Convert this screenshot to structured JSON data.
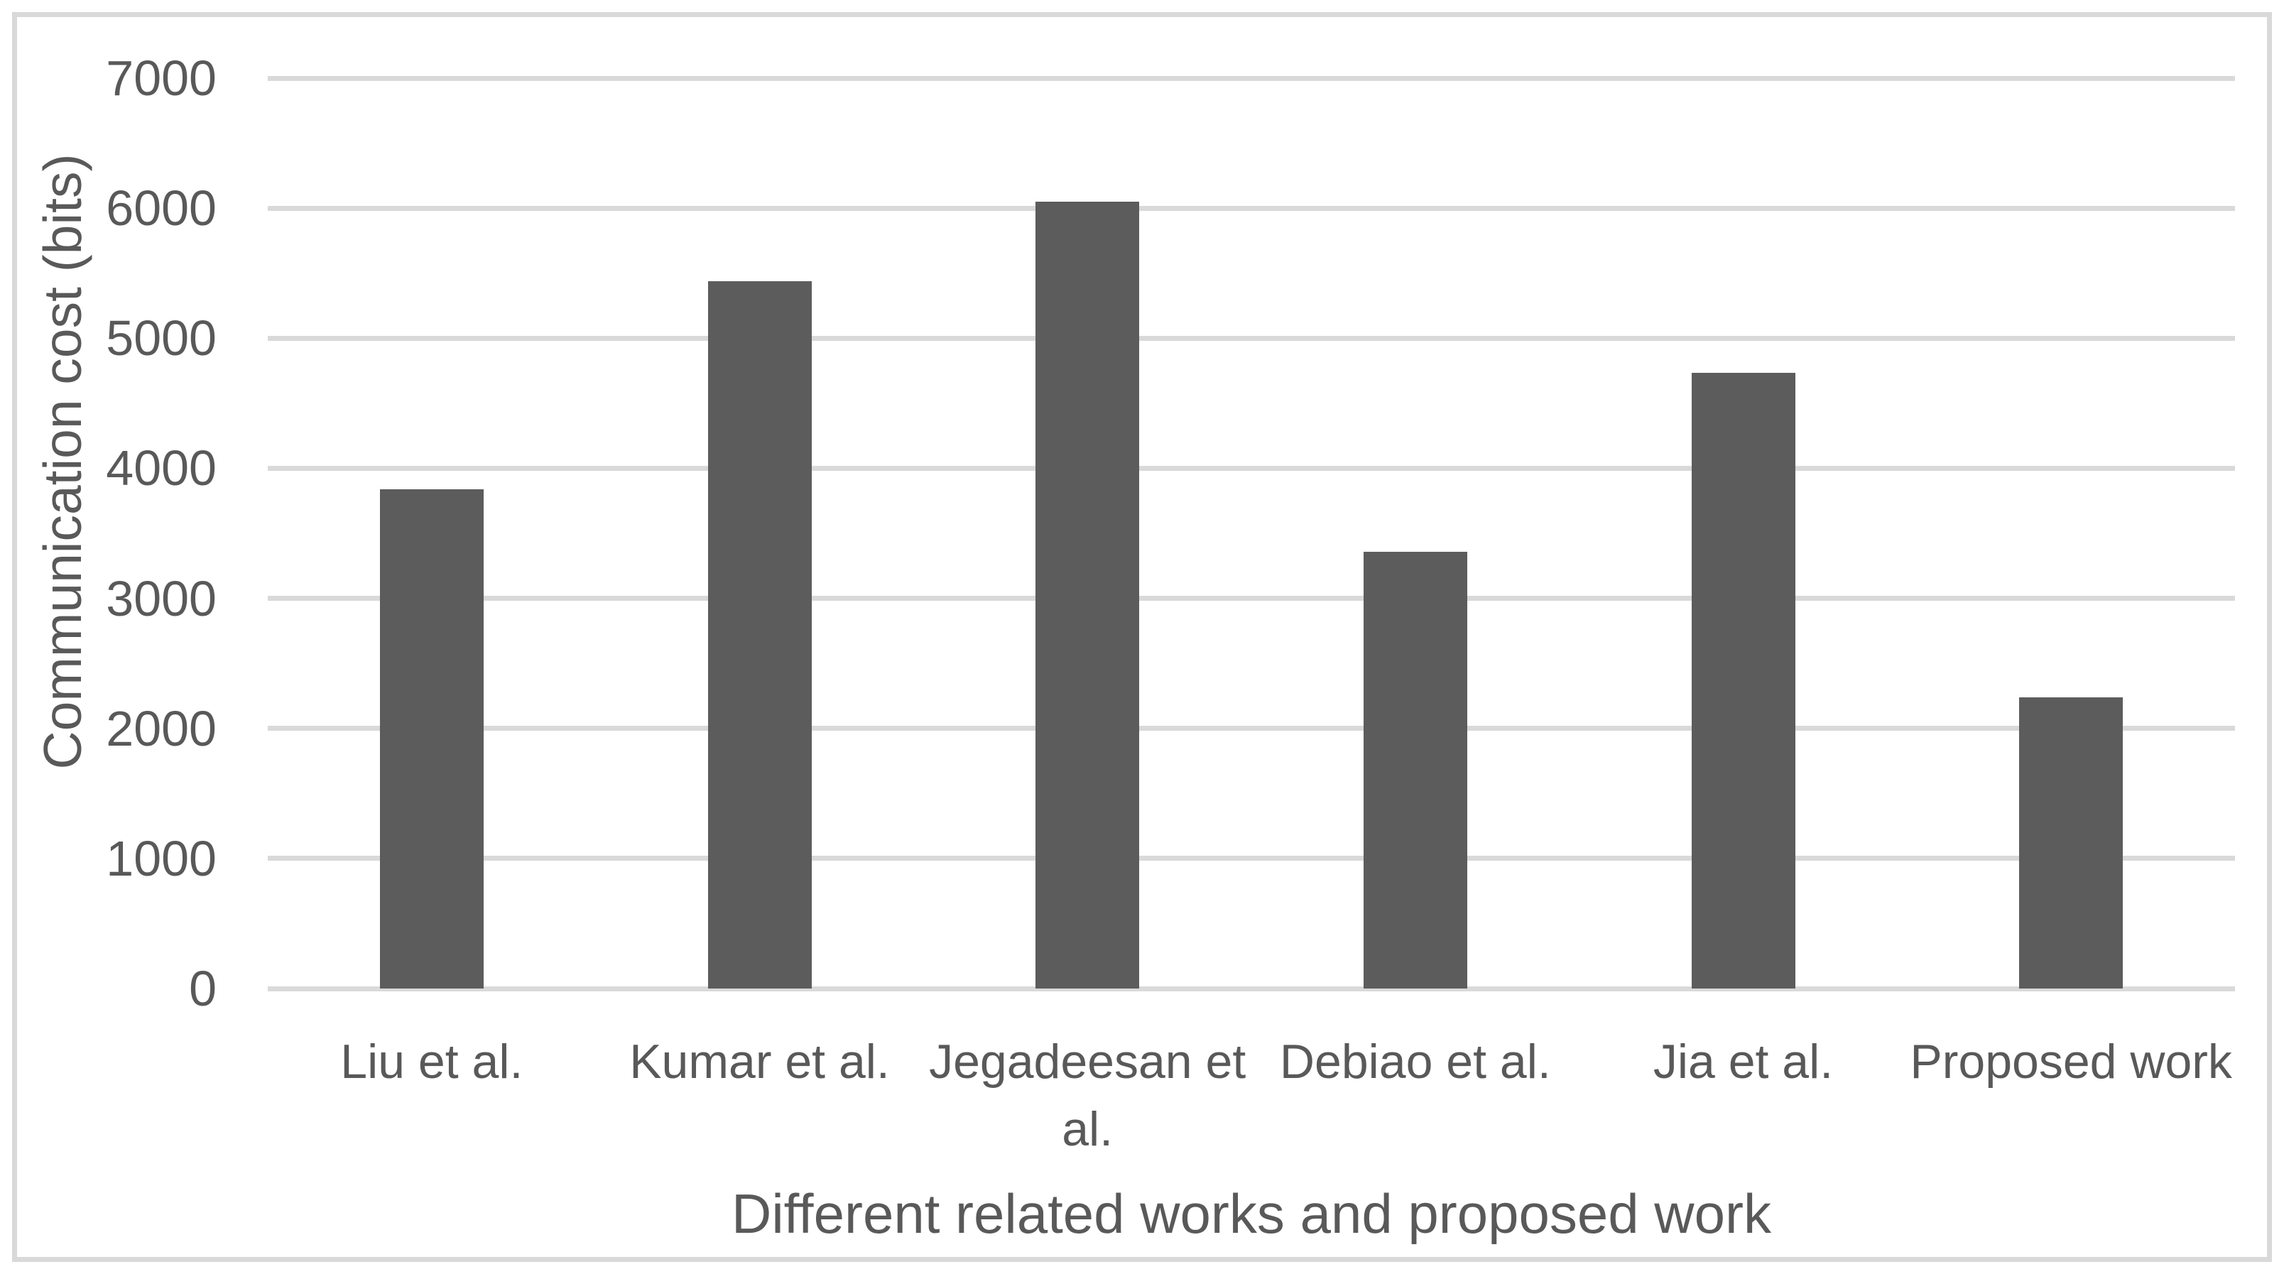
{
  "figure": {
    "background_color": "#ffffff",
    "border_color": "#d9d9d9"
  },
  "chart_data": {
    "type": "bar",
    "title": "",
    "categories": [
      "Liu et al.",
      "Kumar et al.",
      "Jegadeesan et al.",
      "Debiao et al.",
      "Jia et al.",
      "Proposed work"
    ],
    "values": [
      3840,
      5440,
      6048,
      3360,
      4736,
      2240
    ],
    "xlabel": "Different related works and proposed work",
    "ylabel": "Communication cost (bits)",
    "ylim": [
      0,
      7000
    ],
    "yticks": [
      0,
      1000,
      2000,
      3000,
      4000,
      5000,
      6000,
      7000
    ],
    "grid": true,
    "legend_position": "none",
    "bar_color": "#5c5c5c",
    "gridline_color": "#d9d9d9",
    "text_color": "#595959"
  }
}
